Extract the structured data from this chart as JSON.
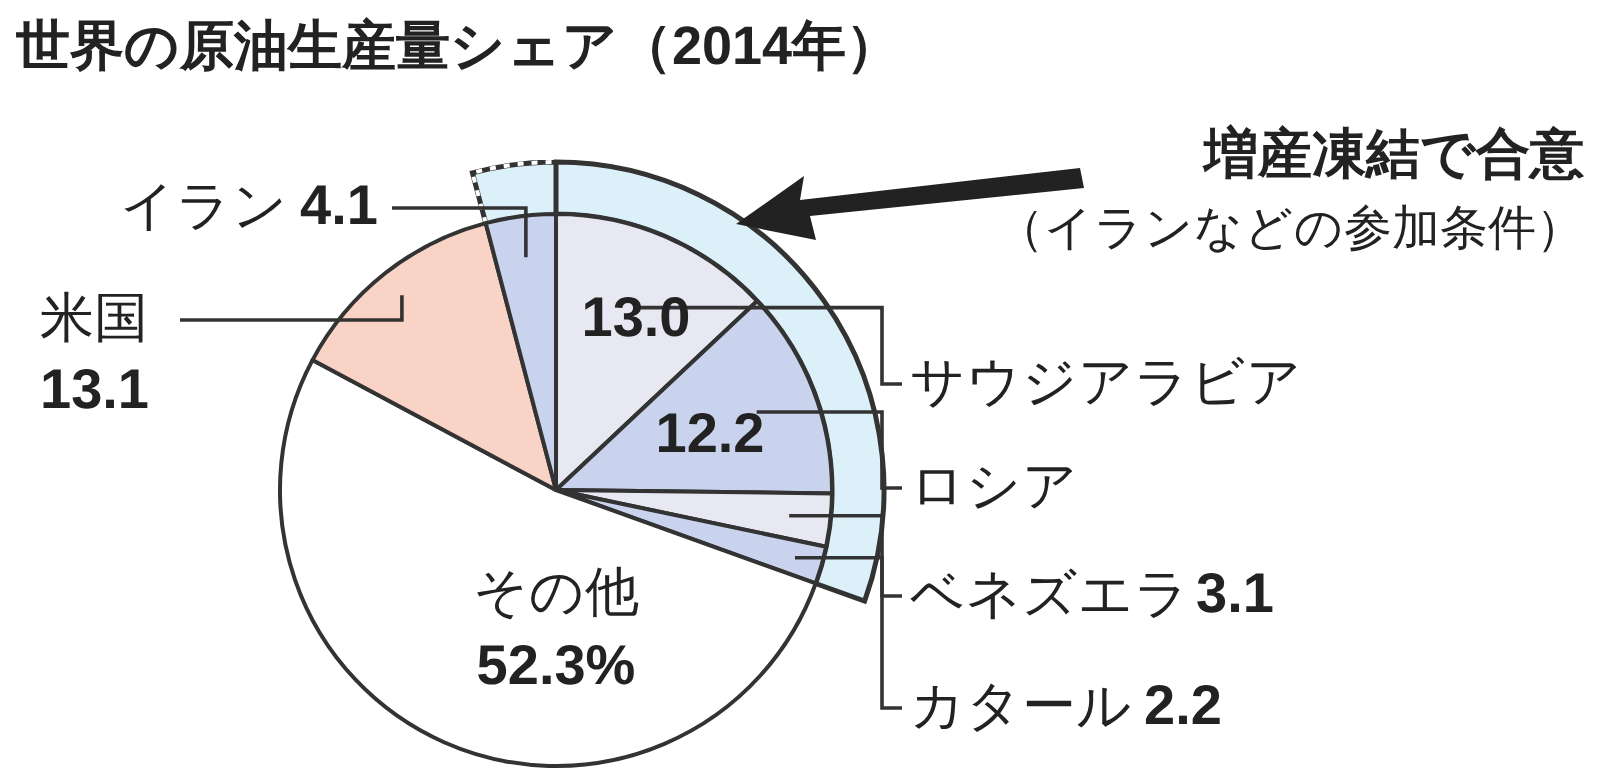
{
  "chart_data": {
    "type": "pie",
    "title": "世界の原油生産量シェア（2014年）",
    "categories": [
      "サウジアラビア",
      "ロシア",
      "ベネズエラ",
      "カタール",
      "その他",
      "米国",
      "イラン"
    ],
    "values": [
      13.0,
      12.2,
      3.1,
      2.2,
      52.3,
      13.1,
      4.1
    ],
    "value_labels": [
      "13.0",
      "12.2",
      "3.1",
      "2.2",
      "52.3%",
      "13.1",
      "4.1"
    ],
    "colors": [
      "#e8e8f3",
      "#c9d3ee",
      "#e8e8f3",
      "#c9d3ee",
      "#ffffff",
      "#f9d4c6",
      "#c9d3ee"
    ],
    "annotations": [
      "増産凍結で合意",
      "（イランなどの参加条件）"
    ]
  }
}
